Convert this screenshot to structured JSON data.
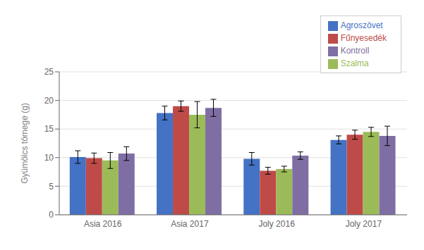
{
  "chart_data": {
    "type": "bar",
    "ylabel": "Gyümölcs tömege (g)",
    "categories": [
      "Asia 2016",
      "Asia 2017",
      "Joly 2016",
      "Joly 2017"
    ],
    "series": [
      {
        "name": "Agroszövet",
        "color": "#4472C4",
        "values": [
          10.1,
          17.8,
          9.8,
          13.1
        ],
        "errors": [
          1.1,
          1.2,
          1.1,
          0.7
        ]
      },
      {
        "name": "Fűnyesedék",
        "color": "#BE4B48",
        "values": [
          9.9,
          19.0,
          7.7,
          14.0
        ],
        "errors": [
          0.9,
          0.9,
          0.6,
          0.8
        ]
      },
      {
        "name": "Szalma",
        "color": "#9BBB59",
        "values": [
          9.5,
          17.5,
          8.0,
          14.5
        ],
        "errors": [
          1.4,
          2.3,
          0.5,
          0.8
        ]
      },
      {
        "name": "Kontroll",
        "color": "#7F6EA3",
        "values": [
          10.7,
          18.7,
          10.35,
          13.8
        ],
        "errors": [
          1.2,
          1.5,
          0.65,
          1.7
        ]
      }
    ],
    "ylim": [
      0,
      25
    ],
    "yticks": [
      0,
      5,
      10,
      15,
      20,
      25
    ],
    "grid": true,
    "legend": "upper right"
  }
}
